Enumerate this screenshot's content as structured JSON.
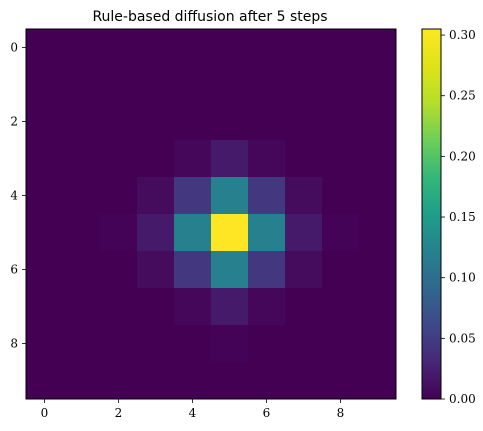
{
  "chart_data": {
    "type": "heatmap",
    "title": "Rule-based diffusion after 5 steps",
    "xlabel": "",
    "ylabel": "",
    "colormap": "viridis",
    "vmin": 0.0,
    "vmax": 0.305,
    "x_range": [
      -0.5,
      9.5
    ],
    "y_range": [
      -0.5,
      9.5
    ],
    "y_inverted": true,
    "x_ticks": [
      0,
      2,
      4,
      6,
      8
    ],
    "x_tick_labels": [
      "0",
      "2",
      "4",
      "6",
      "8"
    ],
    "y_ticks": [
      0,
      2,
      4,
      6,
      8
    ],
    "y_tick_labels": [
      "0",
      "2",
      "4",
      "6",
      "8"
    ],
    "colorbar_ticks": [
      0.0,
      0.05,
      0.1,
      0.15,
      0.2,
      0.25,
      0.3
    ],
    "colorbar_tick_labels": [
      "0.00",
      "0.05",
      "0.10",
      "0.15",
      "0.20",
      "0.25",
      "0.30"
    ],
    "values": [
      [
        0,
        0,
        0,
        0,
        0,
        0,
        0,
        0,
        0,
        0
      ],
      [
        0,
        0,
        0,
        0,
        0,
        0,
        0,
        0,
        0,
        0
      ],
      [
        0,
        0,
        0,
        0,
        0,
        0,
        0,
        0,
        0,
        0
      ],
      [
        0,
        0,
        0,
        0,
        0.005,
        0.02,
        0.005,
        0,
        0,
        0
      ],
      [
        0,
        0,
        0,
        0.008,
        0.045,
        0.12,
        0.045,
        0.008,
        0,
        0
      ],
      [
        0,
        0,
        0.002,
        0.02,
        0.12,
        0.305,
        0.12,
        0.02,
        0.002,
        0
      ],
      [
        0,
        0,
        0,
        0.008,
        0.045,
        0.12,
        0.045,
        0.008,
        0,
        0
      ],
      [
        0,
        0,
        0,
        0,
        0.005,
        0.02,
        0.005,
        0,
        0,
        0
      ],
      [
        0,
        0,
        0,
        0,
        0,
        0.002,
        0,
        0,
        0,
        0
      ],
      [
        0,
        0,
        0,
        0,
        0,
        0,
        0,
        0,
        0,
        0
      ]
    ]
  }
}
